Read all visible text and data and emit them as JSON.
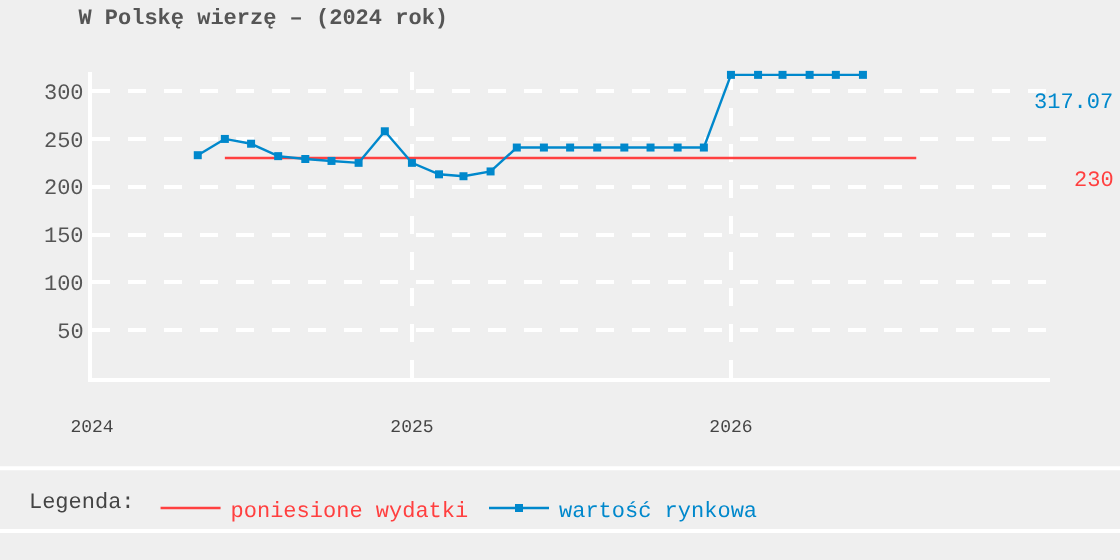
{
  "chart_data": {
    "type": "line",
    "title": "W Polskę wierzę – (2024 rok)",
    "legend_title": "Legenda:",
    "legend": "bottom",
    "grid": true,
    "marker": "square",
    "line_style": "solid",
    "xlim": [
      "2024-01",
      "2027-01"
    ],
    "xticks": [
      {
        "value": "2024-01",
        "label": "2024"
      },
      {
        "value": "2025-01",
        "label": "2025"
      },
      {
        "value": "2026-01",
        "label": "2026"
      }
    ],
    "ylim": [
      0,
      320
    ],
    "yticks": [
      {
        "value": 0,
        "label": null
      },
      50,
      100,
      150,
      200,
      250,
      300
    ],
    "series": [
      {
        "name": "poniesione wydatki",
        "color": "#ff4040",
        "marker": "none",
        "x": [
          "2024-06",
          "2026-08"
        ],
        "values": [
          230,
          230
        ]
      },
      {
        "name": "wartość rynkowa",
        "color": "#0088cc",
        "x": [
          "2024-05",
          "2024-06",
          "2024-07",
          "2024-08",
          "2024-09",
          "2024-10",
          "2024-11",
          "2024-12",
          "2025-01",
          "2025-02",
          "2025-03",
          "2025-04",
          "2025-05",
          "2025-06",
          "2025-07",
          "2025-08",
          "2025-09",
          "2025-10",
          "2025-11",
          "2025-12",
          "2026-01",
          "2026-02",
          "2026-03",
          "2026-04",
          "2026-05",
          "2026-06"
        ],
        "values": [
          233,
          250,
          245,
          232,
          229,
          227,
          225,
          258,
          225,
          213,
          211,
          216,
          241,
          241,
          241,
          241,
          241,
          241,
          241,
          241,
          317,
          317,
          317,
          317,
          317,
          317
        ]
      }
    ],
    "annotations": [
      "317.07",
      "230"
    ]
  }
}
